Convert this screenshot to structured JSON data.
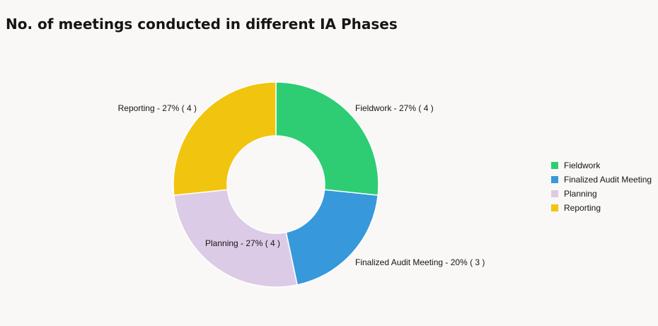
{
  "chart_data": {
    "type": "pie",
    "donut": true,
    "title": "No. of meetings conducted in different IA Phases",
    "slices": [
      {
        "name": "Fieldwork",
        "value": 4,
        "percent": 27,
        "color": "#2ecd73",
        "label": "Fieldwork - 27% ( 4 )"
      },
      {
        "name": "Finalized Audit Meeting",
        "value": 3,
        "percent": 20,
        "color": "#3799dc",
        "label": "Finalized Audit Meeting - 20% ( 3 )"
      },
      {
        "name": "Planning",
        "value": 4,
        "percent": 27,
        "color": "#dccbe6",
        "label": "Planning - 27% ( 4 )"
      },
      {
        "name": "Reporting",
        "value": 4,
        "percent": 27,
        "color": "#f1c40f",
        "label": "Reporting - 27% ( 4 )"
      }
    ],
    "legend": {
      "position": "right",
      "items": [
        "Fieldwork",
        "Finalized Audit Meeting",
        "Planning",
        "Reporting"
      ]
    }
  }
}
